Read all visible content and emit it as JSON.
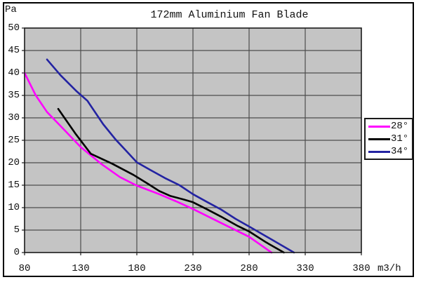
{
  "window": {
    "background": "#ffffff",
    "border_color": "#000000"
  },
  "chart_data": {
    "type": "line",
    "title": "172mm Aluminium Fan Blade",
    "y_axis_unit_label": "Pa",
    "x_axis_unit_label": "m3/h",
    "xlim": [
      80,
      380
    ],
    "ylim": [
      0,
      50
    ],
    "x_ticks": [
      80,
      130,
      180,
      230,
      280,
      330,
      380
    ],
    "y_ticks": [
      0,
      5,
      10,
      15,
      20,
      25,
      30,
      35,
      40,
      45,
      50
    ],
    "grid": true,
    "plot_background": "#c4c4c4",
    "grid_color": "#4d4d4d",
    "axis_color": "#1a1a1a",
    "legend_position": "right-outside",
    "series": [
      {
        "name": "28°",
        "color": "#ff00ff",
        "points": [
          [
            80,
            40
          ],
          [
            90,
            35
          ],
          [
            100,
            31.3
          ],
          [
            112,
            28.2
          ],
          [
            130,
            23.5
          ],
          [
            148,
            19.8
          ],
          [
            165,
            16.8
          ],
          [
            180,
            14.9
          ],
          [
            200,
            13.0
          ],
          [
            215,
            11.4
          ],
          [
            230,
            9.7
          ],
          [
            255,
            6.6
          ],
          [
            280,
            3.5
          ],
          [
            300,
            0
          ]
        ]
      },
      {
        "name": "31°",
        "color": "#000000",
        "points": [
          [
            110,
            32
          ],
          [
            125,
            26.6
          ],
          [
            139,
            22.0
          ],
          [
            158,
            19.8
          ],
          [
            177,
            17.3
          ],
          [
            190,
            15.3
          ],
          [
            200,
            13.7
          ],
          [
            210,
            12.6
          ],
          [
            222,
            11.8
          ],
          [
            230,
            11.2
          ],
          [
            242,
            9.7
          ],
          [
            255,
            8.0
          ],
          [
            270,
            5.9
          ],
          [
            280,
            4.7
          ],
          [
            295,
            2.3
          ],
          [
            311,
            0
          ]
        ]
      },
      {
        "name": "34°",
        "color": "#2323a2",
        "points": [
          [
            100,
            43
          ],
          [
            112,
            39.5
          ],
          [
            126,
            36.0
          ],
          [
            136,
            33.8
          ],
          [
            150,
            28.6
          ],
          [
            161,
            25.2
          ],
          [
            170,
            22.8
          ],
          [
            180,
            20.1
          ],
          [
            192,
            18.4
          ],
          [
            205,
            16.6
          ],
          [
            218,
            15.0
          ],
          [
            230,
            13.0
          ],
          [
            243,
            11.2
          ],
          [
            255,
            9.6
          ],
          [
            268,
            7.5
          ],
          [
            280,
            5.8
          ],
          [
            300,
            2.9
          ],
          [
            320,
            0
          ]
        ]
      }
    ]
  }
}
